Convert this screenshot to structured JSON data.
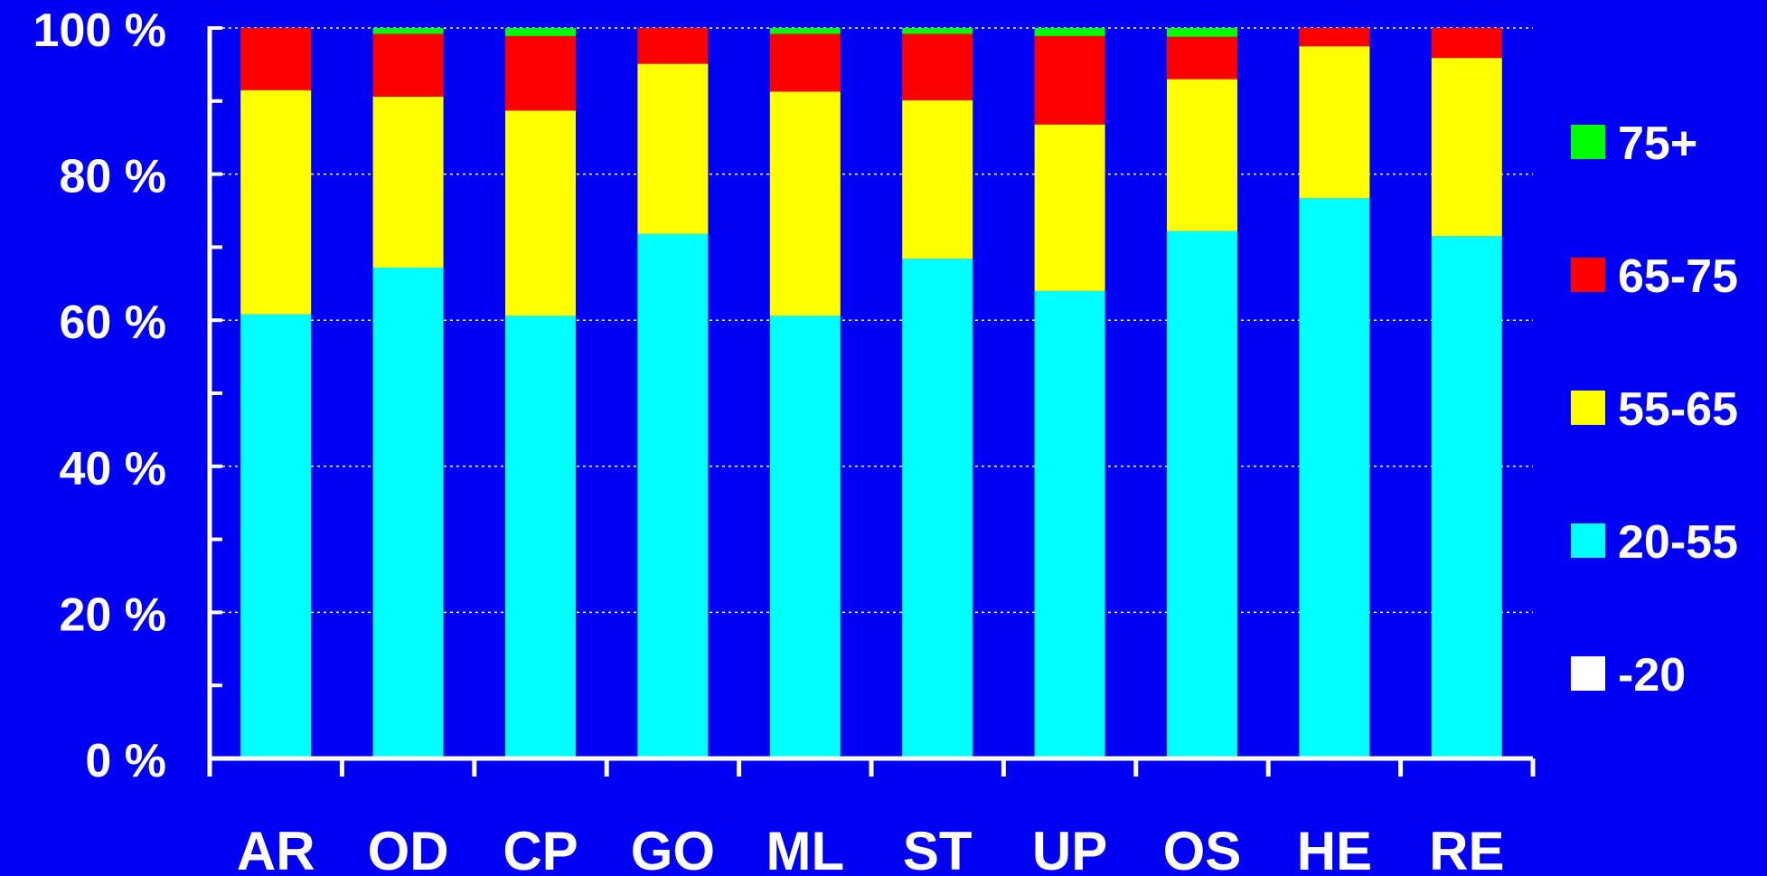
{
  "chart_data": {
    "type": "bar",
    "stacked": true,
    "categories": [
      "AR",
      "OD",
      "CP",
      "GO",
      "ML",
      "ST",
      "UP",
      "OS",
      "HE",
      "RE"
    ],
    "series": [
      {
        "name": "-20",
        "color": "#ffffff",
        "values": [
          0,
          0,
          0,
          0,
          0,
          0,
          0,
          0,
          0,
          0
        ]
      },
      {
        "name": "20-55",
        "color": "#00ffff",
        "values": [
          60.8,
          67.2,
          60.6,
          71.8,
          60.6,
          68.4,
          64.0,
          72.2,
          76.7,
          71.5
        ]
      },
      {
        "name": "55-65",
        "color": "#ffff00",
        "values": [
          30.7,
          23.4,
          28.1,
          23.3,
          30.7,
          21.7,
          22.8,
          20.8,
          20.8,
          24.4
        ]
      },
      {
        "name": "65-75",
        "color": "#ff0000",
        "values": [
          8.5,
          8.6,
          10.2,
          4.9,
          7.9,
          9.1,
          12.1,
          5.8,
          2.5,
          4.1
        ]
      },
      {
        "name": "75+",
        "color": "#00ff00",
        "values": [
          0,
          0.8,
          1.1,
          0,
          0.8,
          0.8,
          1.1,
          1.2,
          0,
          0
        ]
      }
    ],
    "legend_order": [
      "75+",
      "65-75",
      "55-65",
      "20-55",
      "-20"
    ],
    "y_ticks": [
      "0 %",
      "20 %",
      "40 %",
      "60 %",
      "80 %",
      "100 %"
    ],
    "ylim": [
      0,
      100
    ],
    "grid": true,
    "legend_position": "right",
    "title": "",
    "xlabel": "",
    "ylabel": ""
  }
}
